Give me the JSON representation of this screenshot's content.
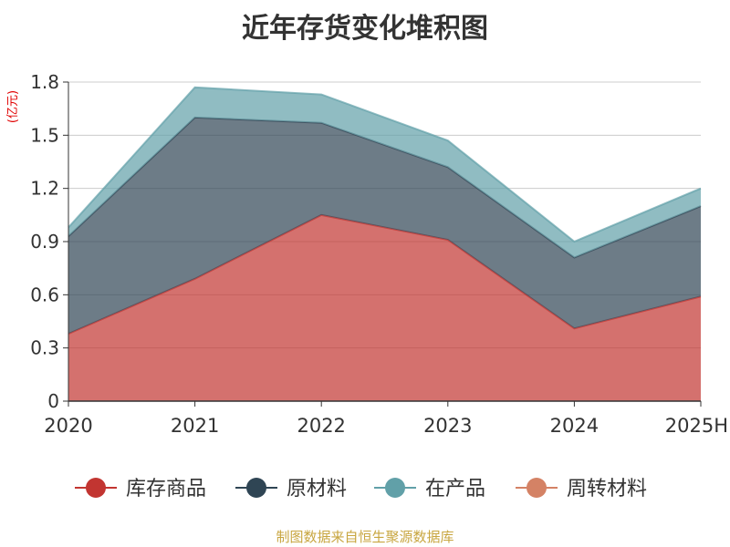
{
  "title": "近年存货变化堆积图",
  "source": "制图数据来自恒生聚源数据库",
  "chart_data": {
    "type": "area",
    "stacked": true,
    "title": "近年存货变化堆积图",
    "unit_label": "(亿元)",
    "categories": [
      "2020",
      "2021",
      "2022",
      "2023",
      "2024",
      "2025H"
    ],
    "ylim": [
      0,
      1.8
    ],
    "yticks": [
      "0",
      "0.3",
      "0.6",
      "0.9",
      "1.2",
      "1.5",
      "1.8"
    ],
    "grid": true,
    "legend_position": "bottom",
    "series": [
      {
        "name": "库存商品",
        "color": "#c23531",
        "values": [
          0.38,
          0.69,
          1.05,
          0.91,
          0.41,
          0.59
        ]
      },
      {
        "name": "原材料",
        "color": "#2f4554",
        "values": [
          0.55,
          0.91,
          0.52,
          0.41,
          0.4,
          0.51
        ]
      },
      {
        "name": "在产品",
        "color": "#61a0a8",
        "values": [
          0.05,
          0.17,
          0.16,
          0.15,
          0.09,
          0.1
        ]
      },
      {
        "name": "周转材料",
        "color": "#d48265",
        "values": [
          0.0,
          0.0,
          0.0,
          0.0,
          0.0,
          0.0
        ]
      }
    ]
  }
}
